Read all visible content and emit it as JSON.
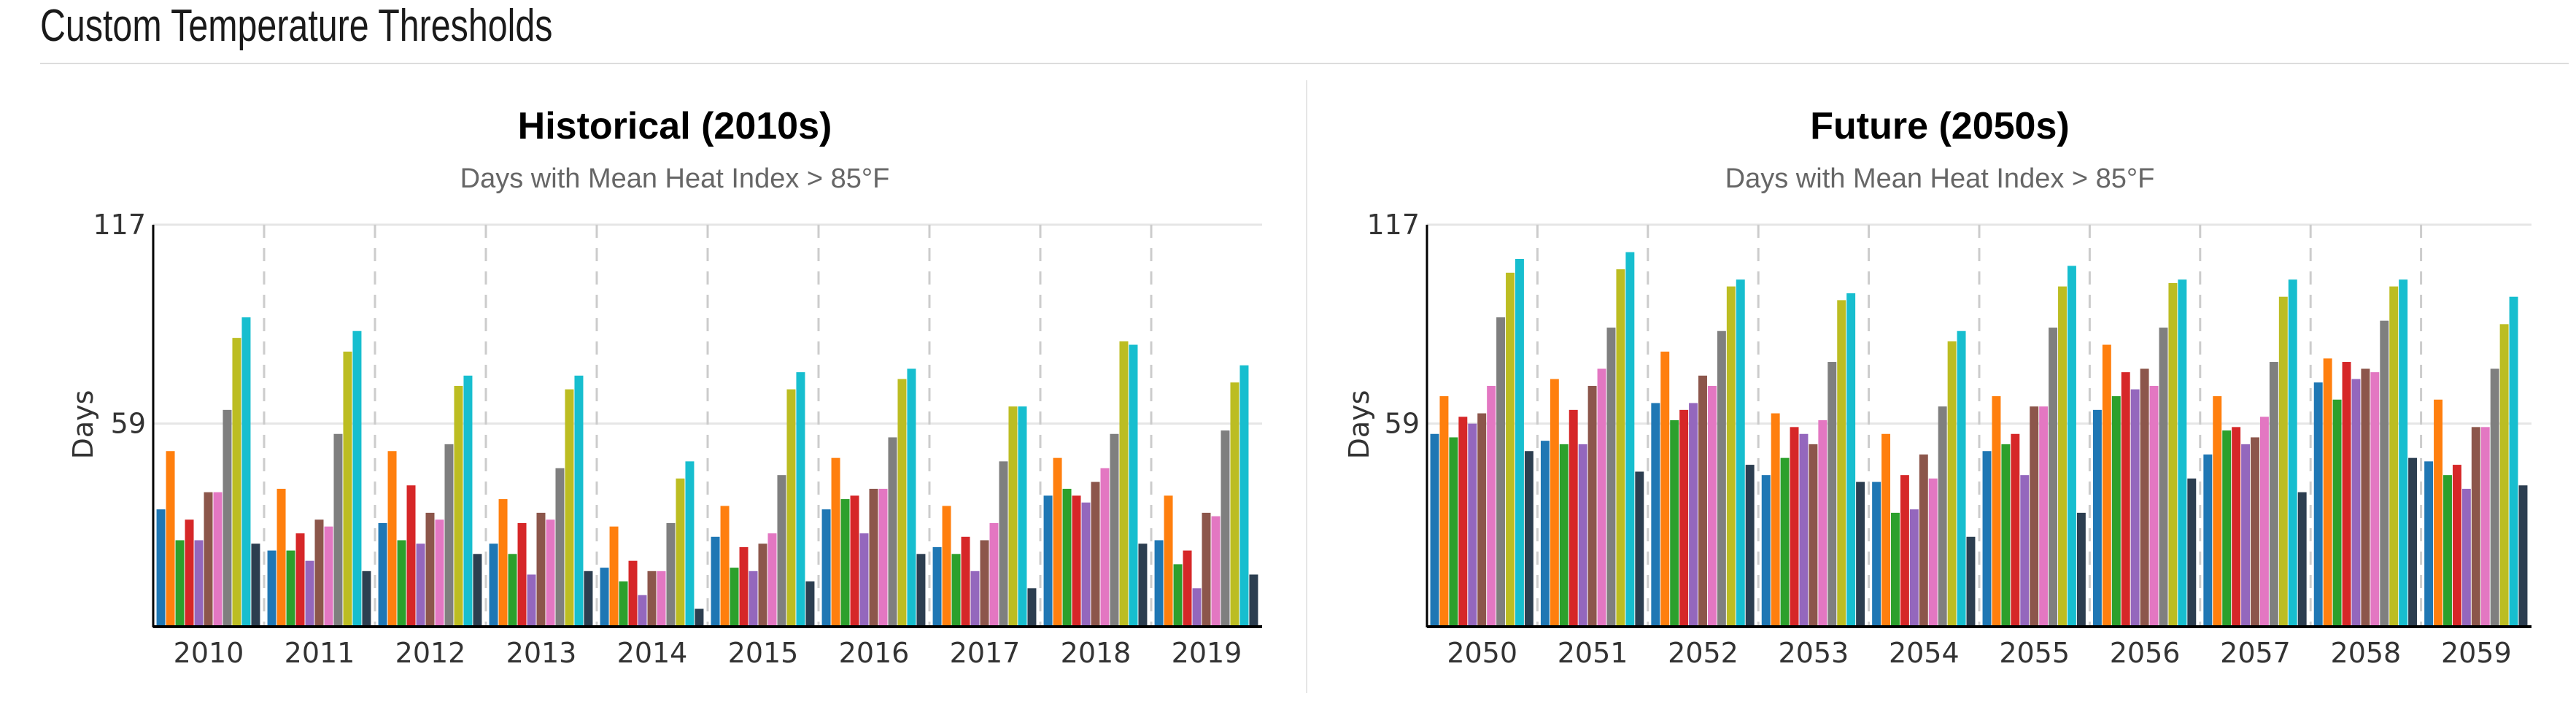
{
  "header": {
    "title": "Custom Temperature Thresholds"
  },
  "series_colors": [
    "#1f77b4",
    "#ff7f0e",
    "#2ca02c",
    "#d62728",
    "#9467bd",
    "#8c564b",
    "#e377c2",
    "#7f7f7f",
    "#bcbd22",
    "#17becf",
    "#2c3e50"
  ],
  "chart_data": [
    {
      "type": "bar",
      "title": "Historical (2010s)",
      "subtitle": "Days with Mean Heat Index > 85°F",
      "ylabel": "Days",
      "xlabel": "",
      "ylim": [
        0,
        117
      ],
      "yticks": [
        59,
        117
      ],
      "grid": "horizontal at 59; vertical dashed separators between years",
      "legend": "none",
      "categories": [
        "2010",
        "2011",
        "2012",
        "2013",
        "2014",
        "2015",
        "2016",
        "2017",
        "2018",
        "2019"
      ],
      "groups": [
        [
          34,
          51,
          25,
          31,
          25,
          39,
          39,
          63,
          84,
          90,
          24
        ],
        [
          22,
          40,
          22,
          27,
          19,
          31,
          29,
          56,
          80,
          86,
          16
        ],
        [
          30,
          51,
          25,
          41,
          24,
          33,
          31,
          53,
          70,
          73,
          21
        ],
        [
          24,
          37,
          21,
          30,
          15,
          33,
          31,
          46,
          69,
          73,
          16
        ],
        [
          17,
          29,
          13,
          19,
          9,
          16,
          16,
          30,
          43,
          48,
          5
        ],
        [
          26,
          35,
          17,
          23,
          16,
          24,
          27,
          44,
          69,
          74,
          13
        ],
        [
          34,
          49,
          37,
          38,
          27,
          40,
          40,
          55,
          72,
          75,
          21
        ],
        [
          23,
          35,
          21,
          26,
          16,
          25,
          30,
          48,
          64,
          64,
          11
        ],
        [
          38,
          49,
          40,
          38,
          36,
          42,
          46,
          56,
          83,
          82,
          24
        ],
        [
          25,
          38,
          18,
          22,
          11,
          33,
          32,
          57,
          71,
          76,
          15
        ]
      ]
    },
    {
      "type": "bar",
      "title": "Future (2050s)",
      "subtitle": "Days with Mean Heat Index > 85°F",
      "ylabel": "Days",
      "xlabel": "",
      "ylim": [
        0,
        117
      ],
      "yticks": [
        59,
        117
      ],
      "grid": "horizontal at 59; vertical dashed separators between years",
      "legend": "none",
      "categories": [
        "2050",
        "2051",
        "2052",
        "2053",
        "2054",
        "2055",
        "2056",
        "2057",
        "2058",
        "2059"
      ],
      "groups": [
        [
          56,
          67,
          55,
          61,
          59,
          62,
          70,
          90,
          103,
          107,
          51
        ],
        [
          54,
          72,
          53,
          63,
          53,
          70,
          75,
          87,
          104,
          109,
          45
        ],
        [
          65,
          80,
          60,
          63,
          65,
          73,
          70,
          86,
          99,
          101,
          47
        ],
        [
          44,
          62,
          49,
          58,
          56,
          53,
          60,
          77,
          95,
          97,
          42
        ],
        [
          42,
          56,
          33,
          44,
          34,
          50,
          43,
          64,
          83,
          86,
          26
        ],
        [
          51,
          67,
          53,
          56,
          44,
          64,
          64,
          87,
          99,
          105,
          33
        ],
        [
          63,
          82,
          67,
          74,
          69,
          75,
          70,
          87,
          100,
          101,
          43
        ],
        [
          50,
          67,
          57,
          58,
          53,
          55,
          61,
          77,
          96,
          101,
          39
        ],
        [
          71,
          78,
          66,
          77,
          72,
          75,
          74,
          89,
          99,
          101,
          49
        ],
        [
          48,
          66,
          44,
          47,
          40,
          58,
          58,
          75,
          88,
          96,
          41
        ]
      ]
    }
  ]
}
